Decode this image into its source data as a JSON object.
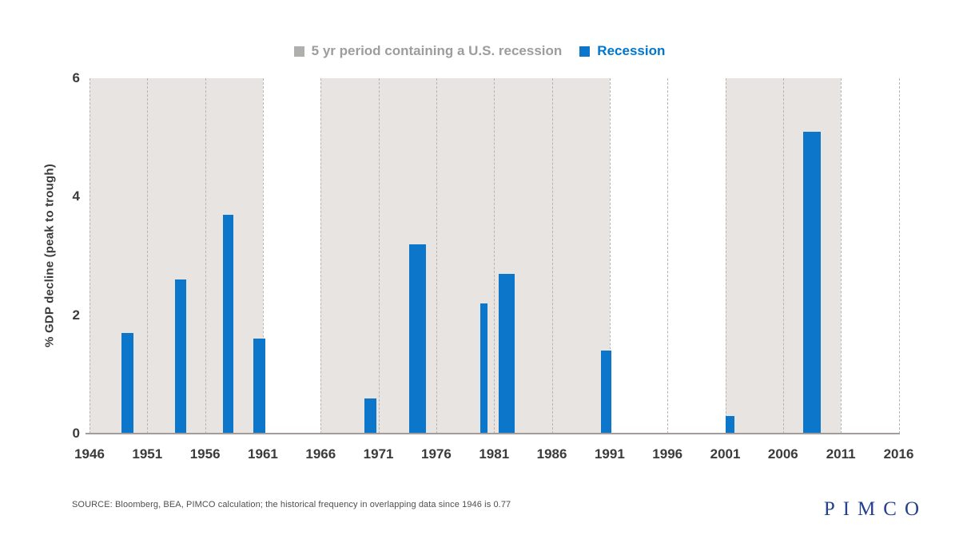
{
  "legend": {
    "period_label": "5 yr period containing a U.S. recession",
    "recession_label": "Recession"
  },
  "footer": {
    "source": "SOURCE: Bloomberg, BEA, PIMCO calculation; the historical frequency in overlapping data since 1946 is 0.77",
    "logo": "PIMCO"
  },
  "colors": {
    "bar_blue": "#0c76ca",
    "legend_blue_text": "#0076cf",
    "shaded_gray": "#e8e4e2",
    "legend_gray_swatch": "#b1aeae",
    "legend_gray_text": "#9e9c9c",
    "gridline_gray": "#b9b3b1",
    "axis_line_gray": "#a29c9a",
    "tick_text": "#3b3b3b",
    "logo_navy": "#24418c"
  },
  "chart_data": {
    "type": "bar",
    "title": "",
    "xlabel": "",
    "ylabel": "% GDP decline  (peak to trough)",
    "xlim": [
      1946,
      2016
    ],
    "ylim": [
      0,
      6
    ],
    "x_ticks": [
      1946,
      1951,
      1956,
      1961,
      1966,
      1971,
      1976,
      1981,
      1986,
      1991,
      1996,
      2001,
      2006,
      2011,
      2016
    ],
    "y_ticks": [
      0,
      2,
      4,
      6
    ],
    "grid": "vertical-dashed",
    "legend_position": "top-center",
    "shaded_periods": [
      {
        "start": 1946,
        "end": 1961
      },
      {
        "start": 1966,
        "end": 1991
      },
      {
        "start": 2001,
        "end": 2011
      }
    ],
    "series_name": "Recession",
    "bars": [
      {
        "year": 1949.3,
        "width_years": 1.05,
        "decline_pct": 1.7
      },
      {
        "year": 1953.9,
        "width_years": 1.0,
        "decline_pct": 2.6
      },
      {
        "year": 1958.0,
        "width_years": 0.85,
        "decline_pct": 3.7
      },
      {
        "year": 1960.7,
        "width_years": 1.0,
        "decline_pct": 1.6
      },
      {
        "year": 1970.3,
        "width_years": 1.05,
        "decline_pct": 0.6
      },
      {
        "year": 1974.4,
        "width_years": 1.45,
        "decline_pct": 3.2
      },
      {
        "year": 1980.1,
        "width_years": 0.65,
        "decline_pct": 2.2
      },
      {
        "year": 1982.1,
        "width_years": 1.4,
        "decline_pct": 2.7
      },
      {
        "year": 1990.7,
        "width_years": 0.85,
        "decline_pct": 1.4
      },
      {
        "year": 2001.4,
        "width_years": 0.75,
        "decline_pct": 0.3
      },
      {
        "year": 2008.5,
        "width_years": 1.5,
        "decline_pct": 5.1
      }
    ]
  }
}
